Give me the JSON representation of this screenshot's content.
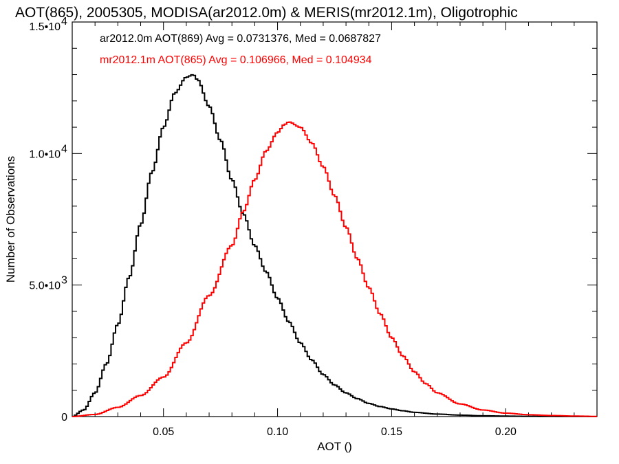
{
  "chart_data": {
    "type": "line",
    "step": true,
    "title": "AOT(865), 2005305, MODISA(ar2012.0m) & MERIS(mr2012.1m), Oligotrophic",
    "xlabel": "AOT ()",
    "ylabel": "Number of Observations",
    "xlim": [
      0.01,
      0.24
    ],
    "ylim": [
      0,
      15000
    ],
    "x_ticks": [
      {
        "value": 0.05,
        "label": "0.05"
      },
      {
        "value": 0.1,
        "label": "0.10"
      },
      {
        "value": 0.15,
        "label": "0.15"
      },
      {
        "value": 0.2,
        "label": "0.20"
      }
    ],
    "y_ticks": [
      {
        "value": 0,
        "label": "0",
        "exp": ""
      },
      {
        "value": 5000,
        "label": "5.0•10",
        "exp": "3"
      },
      {
        "value": 10000,
        "label": "1.0•10",
        "exp": "4"
      },
      {
        "value": 15000,
        "label": "1.5•10",
        "exp": "4"
      }
    ],
    "grid": false,
    "annotations": [
      {
        "text": "ar2012.0m AOT(869) Avg = 0.0731376, Med = 0.0687827",
        "color": "#000000"
      },
      {
        "text": "mr2012.1m AOT(865) Avg = 0.106966, Med = 0.104934",
        "color": "#ff0000"
      }
    ],
    "series": [
      {
        "color": "#000000",
        "x": [
          0.01,
          0.015,
          0.02,
          0.025,
          0.03,
          0.035,
          0.04,
          0.045,
          0.05,
          0.055,
          0.06,
          0.063,
          0.065,
          0.07,
          0.075,
          0.08,
          0.085,
          0.09,
          0.095,
          0.1,
          0.105,
          0.11,
          0.115,
          0.12,
          0.125,
          0.13,
          0.135,
          0.14,
          0.145,
          0.15,
          0.155,
          0.16,
          0.17,
          0.18,
          0.19,
          0.2,
          0.21,
          0.22,
          0.23,
          0.24
        ],
        "y": [
          0,
          250,
          900,
          2000,
          3500,
          5300,
          7300,
          9300,
          11000,
          12300,
          12900,
          13000,
          12800,
          11800,
          10500,
          9000,
          7700,
          6500,
          5500,
          4500,
          3600,
          2800,
          2150,
          1600,
          1200,
          900,
          680,
          500,
          380,
          290,
          220,
          160,
          95,
          55,
          30,
          18,
          10,
          5,
          3,
          1
        ]
      },
      {
        "color": "#ff0000",
        "x": [
          0.01,
          0.02,
          0.03,
          0.04,
          0.05,
          0.06,
          0.07,
          0.08,
          0.085,
          0.09,
          0.095,
          0.1,
          0.103,
          0.105,
          0.11,
          0.115,
          0.12,
          0.125,
          0.13,
          0.135,
          0.14,
          0.145,
          0.15,
          0.155,
          0.16,
          0.165,
          0.17,
          0.18,
          0.19,
          0.2,
          0.21,
          0.22,
          0.23,
          0.24
        ],
        "y": [
          0,
          80,
          350,
          800,
          1500,
          2800,
          4600,
          6500,
          7800,
          9000,
          10100,
          10800,
          11100,
          11200,
          11000,
          10400,
          9500,
          8400,
          7200,
          6000,
          4900,
          3900,
          3000,
          2300,
          1700,
          1250,
          900,
          480,
          250,
          130,
          70,
          40,
          20,
          5
        ]
      }
    ]
  }
}
